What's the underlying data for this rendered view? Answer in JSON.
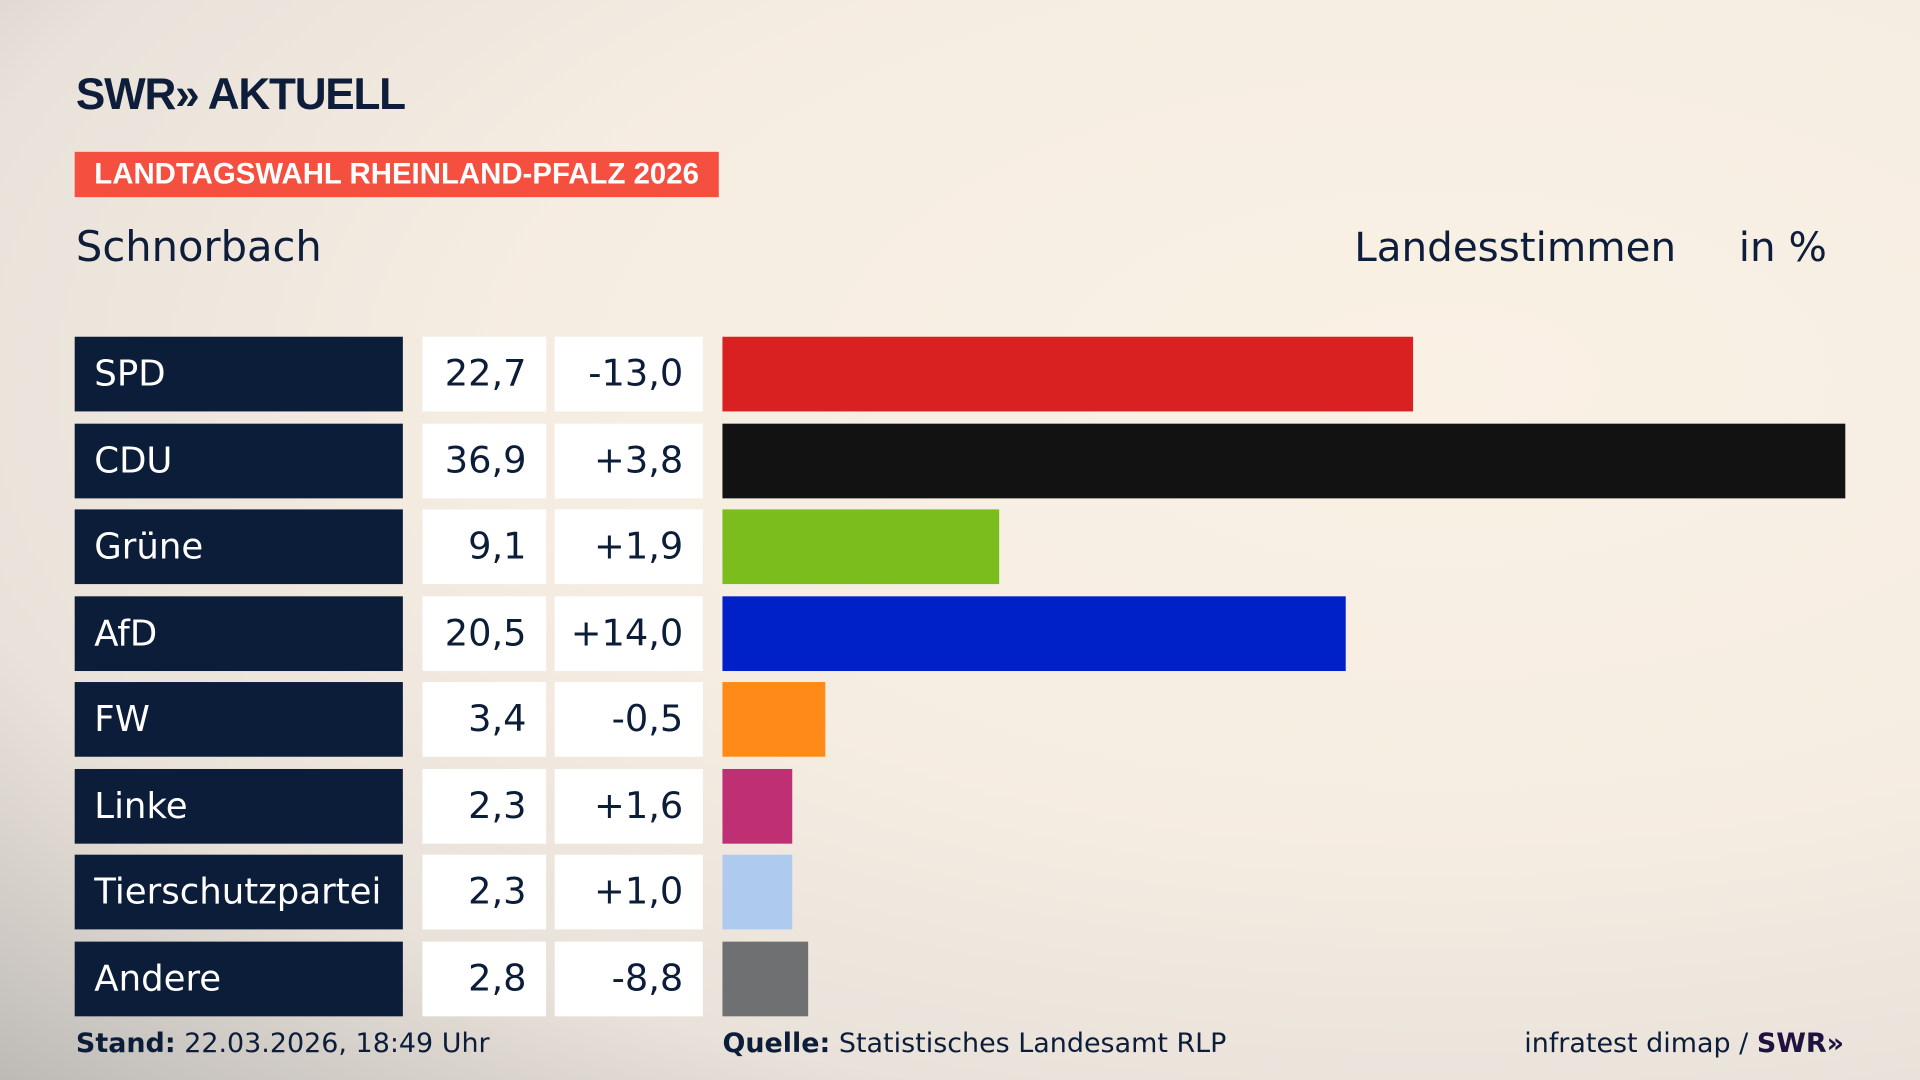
{
  "header": {
    "logo": "SWR» AKTUELL",
    "banner": "LANDTAGSWAHL RHEINLAND-PFALZ 2026",
    "place": "Schnorbach",
    "metric": "Landesstimmen",
    "unit": "in %"
  },
  "chart_data": {
    "type": "bar",
    "orientation": "horizontal",
    "categories": [
      "SPD",
      "CDU",
      "Grüne",
      "AfD",
      "FW",
      "Linke",
      "Tierschutzpartei",
      "Andere"
    ],
    "values": [
      22.7,
      36.9,
      9.1,
      20.5,
      3.4,
      2.3,
      2.3,
      2.8
    ],
    "value_labels": [
      "22,7",
      "36,9",
      "9,1",
      "20,5",
      "3,4",
      "2,3",
      "2,3",
      "2,8"
    ],
    "diff_labels": [
      "-13,0",
      "+3,8",
      "+1,9",
      "+14,0",
      "-0,5",
      "+1,6",
      "+1,0",
      "-8,8"
    ],
    "colors": [
      "#d92121",
      "#121212",
      "#7abd1c",
      "#0020c8",
      "#ff8a17",
      "#be2f73",
      "#aecbef",
      "#6f7072"
    ],
    "xlim": [
      0,
      36.9
    ],
    "grid": false
  },
  "footer": {
    "stand_label": "Stand:",
    "stand_value": "22.03.2026, 18:49 Uhr",
    "source_label": "Quelle:",
    "source_value": "Statistisches Landesamt RLP",
    "credit": "infratest dimap / ",
    "credit_brand": "SWR»"
  }
}
